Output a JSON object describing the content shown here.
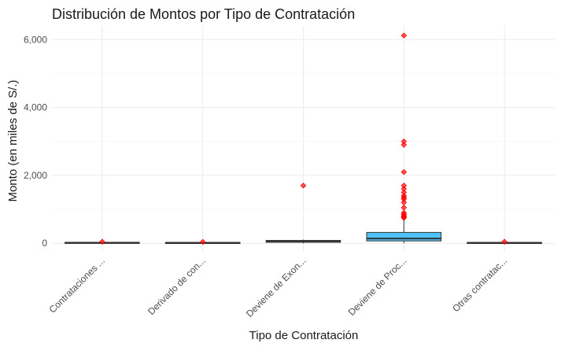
{
  "chart_data": {
    "type": "boxplot",
    "title": "Distribución de Montos por Tipo de Contratación",
    "xlabel": "Tipo de Contratación",
    "ylabel": "Monto (en miles de S/.)",
    "ylim": [
      -250,
      6400
    ],
    "yticks": [
      0,
      2000,
      4000,
      6000
    ],
    "ytick_labels": [
      "0",
      "2,000",
      "4,000",
      "6,000"
    ],
    "grid": true,
    "categories": [
      "Contrataciones ...",
      "Derivado de con...",
      "Deviene de Exon...",
      "Deviene de Proc...",
      "Otras contratac..."
    ],
    "boxes": [
      {
        "category": "Contrataciones ...",
        "min": 0,
        "q1": 5,
        "median": 15,
        "q3": 30,
        "max": 40,
        "outliers": [
          45
        ]
      },
      {
        "category": "Derivado de con...",
        "min": 0,
        "q1": 5,
        "median": 12,
        "q3": 28,
        "max": 35,
        "outliers": [
          40
        ]
      },
      {
        "category": "Deviene de Exon...",
        "min": 0,
        "q1": 30,
        "median": 50,
        "q3": 85,
        "max": 110,
        "outliers": [
          1700
        ]
      },
      {
        "category": "Deviene de Proc...",
        "min": 0,
        "q1": 70,
        "median": 140,
        "q3": 320,
        "max": 700,
        "outliers": [
          750,
          780,
          810,
          850,
          900,
          1050,
          1200,
          1300,
          1350,
          1400,
          1500,
          1600,
          1700,
          2100,
          2900,
          3000,
          6120
        ]
      },
      {
        "category": "Otras contratac...",
        "min": 0,
        "q1": 5,
        "median": 15,
        "q3": 28,
        "max": 38,
        "outliers": [
          45
        ]
      }
    ],
    "colors": {
      "box_fill": "#4fc3f7",
      "outlier": "#ff0000",
      "line": "#333333"
    }
  }
}
